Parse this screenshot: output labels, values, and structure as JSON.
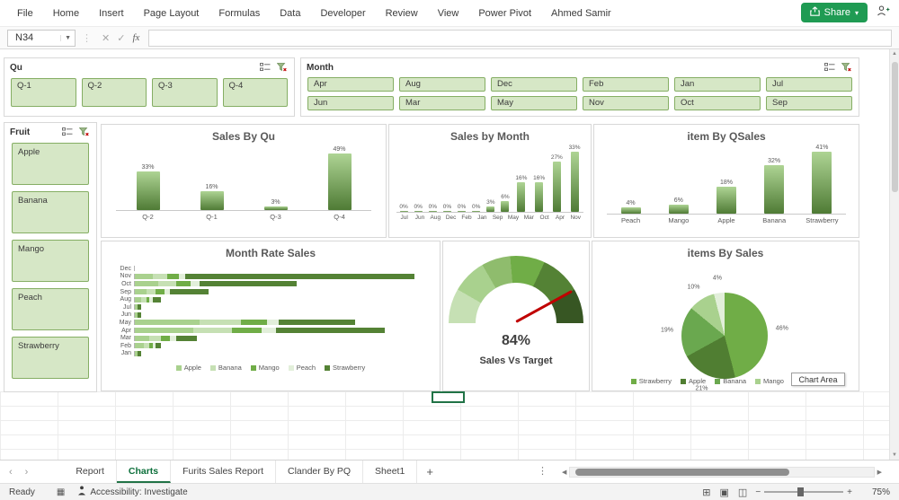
{
  "ribbon": {
    "tabs": [
      "File",
      "Home",
      "Insert",
      "Page Layout",
      "Formulas",
      "Data",
      "Developer",
      "Review",
      "View",
      "Power Pivot",
      "Ahmed Samir"
    ],
    "share_label": "Share"
  },
  "formula_bar": {
    "name_box": "N34",
    "fx_label": "fx",
    "value": ""
  },
  "colors": {
    "accent_green": "#217346",
    "share_button_green": "#1f9b53",
    "slicer_fill": "#d6e7c6",
    "slicer_border": "#85ae64",
    "needle_red": "#c00000"
  },
  "slicers": {
    "qu": {
      "title": "Qu",
      "items": [
        "Q-1",
        "Q-2",
        "Q-3",
        "Q-4"
      ]
    },
    "month": {
      "title": "Month",
      "items": [
        "Apr",
        "Aug",
        "Dec",
        "Feb",
        "Jan",
        "Jul",
        "Jun",
        "Mar",
        "May",
        "Nov",
        "Oct",
        "Sep"
      ]
    },
    "fruit": {
      "title": "Fruit",
      "items": [
        "Apple",
        "Banana",
        "Mango",
        "Peach",
        "Strawberry"
      ]
    }
  },
  "chart_data": [
    {
      "id": "sales_by_qu",
      "type": "bar",
      "title": "Sales By Qu",
      "categories": [
        "Q-2",
        "Q-1",
        "Q-3",
        "Q-4"
      ],
      "values": [
        33,
        16,
        3,
        49
      ],
      "labels": [
        "33%",
        "16%",
        "3%",
        "49%"
      ],
      "ymax": 55
    },
    {
      "id": "sales_by_month",
      "type": "bar",
      "title": "Sales by Month",
      "categories": [
        "Jul",
        "Jun",
        "Aug",
        "Dec",
        "Feb",
        "Jan",
        "Sep",
        "May",
        "Mar",
        "Oct",
        "Apr",
        "Nov"
      ],
      "values": [
        0,
        0,
        0,
        0,
        0,
        0,
        3,
        6,
        16,
        16,
        27,
        33
      ],
      "labels": [
        "0%",
        "0%",
        "0%",
        "0%",
        "0%",
        "0%",
        "3%",
        "6%",
        "16%",
        "16%",
        "27%",
        "33%"
      ],
      "ymax": 36
    },
    {
      "id": "item_by_qsales",
      "type": "bar",
      "title": "item By QSales",
      "categories": [
        "Peach",
        "Mango",
        "Apple",
        "Banana",
        "Strawberry"
      ],
      "values": [
        4,
        6,
        18,
        32,
        41
      ],
      "labels": [
        "4%",
        "6%",
        "18%",
        "32%",
        "41%"
      ],
      "ymax": 46
    },
    {
      "id": "month_rate_sales",
      "type": "stacked_bar_horizontal",
      "title": "Month Rate Sales",
      "categories": [
        "Dec",
        "Nov",
        "Oct",
        "Sep",
        "Aug",
        "Jul",
        "Jun",
        "May",
        "Apr",
        "Mar",
        "Feb",
        "Jan"
      ],
      "series_names": [
        "Apple",
        "Banana",
        "Mango",
        "Peach",
        "Strawberry"
      ],
      "series_colors": [
        "#a9d18e",
        "#c6e0b4",
        "#70ad47",
        "#e2efda",
        "#548235"
      ],
      "rows": [
        [
          0,
          0,
          0,
          0,
          0
        ],
        [
          6,
          5,
          4,
          2,
          78
        ],
        [
          8,
          6,
          5,
          3,
          33
        ],
        [
          4,
          3,
          3,
          2,
          13
        ],
        [
          2,
          2,
          1,
          1,
          3
        ],
        [
          1,
          0,
          0,
          0,
          1
        ],
        [
          1,
          0,
          0,
          0,
          1
        ],
        [
          22,
          14,
          9,
          4,
          26
        ],
        [
          20,
          13,
          10,
          5,
          37
        ],
        [
          5,
          4,
          3,
          2,
          7
        ],
        [
          3,
          2,
          1,
          1,
          2
        ],
        [
          1,
          0,
          0,
          0,
          1
        ]
      ],
      "xmax": 100
    },
    {
      "id": "sales_vs_target",
      "type": "gauge",
      "value": 84,
      "value_label": "84%",
      "label": "Sales Vs Target"
    },
    {
      "id": "items_by_sales",
      "type": "pie",
      "title": "items By Sales",
      "legend": [
        "Strawberry",
        "Apple",
        "Banana",
        "Mango",
        "Peach"
      ],
      "values": [
        46,
        21,
        19,
        10,
        4
      ],
      "labels": [
        "46%",
        "21%",
        "19%",
        "10%",
        "4%"
      ],
      "colors": [
        "#70ad47",
        "#507e32",
        "#6aa84f",
        "#a9d18e",
        "#e2efda"
      ]
    }
  ],
  "tooltip": {
    "text": "Chart Area"
  },
  "sheet_tabs": {
    "tabs": [
      "Report",
      "Charts",
      "Furits Sales Report",
      "Clander By PQ",
      "Sheet1"
    ],
    "active": "Charts",
    "add_label": "+"
  },
  "status_bar": {
    "ready": "Ready",
    "accessibility": "Accessibility: Investigate",
    "zoom": "75%"
  }
}
